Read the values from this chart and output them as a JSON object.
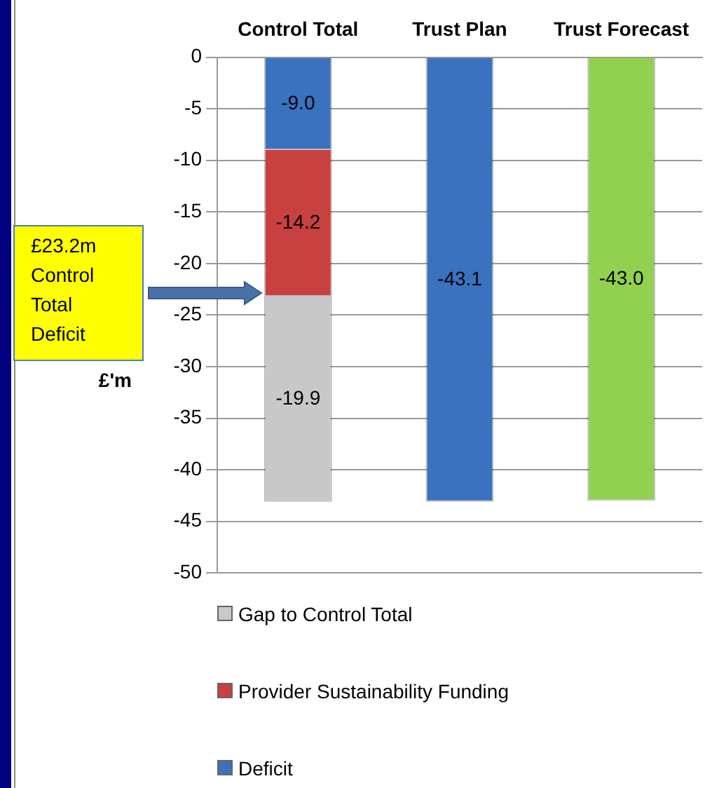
{
  "chart_data": {
    "type": "bar",
    "stacked": true,
    "categories": [
      "Control Total",
      "Trust Plan",
      "Trust Forecast"
    ],
    "ylabel": "£'m",
    "ylim": [
      -50,
      0
    ],
    "yticks": [
      -50,
      -45,
      -40,
      -35,
      -30,
      -25,
      -20,
      -15,
      -10,
      -5,
      0
    ],
    "grid": "y",
    "legend": "bottom",
    "series": [
      {
        "name": "Deficit",
        "color": "#3a72c0",
        "colors": [
          "#3a72c0",
          "#3a72c0",
          "#92d050"
        ],
        "values": [
          -9.0,
          -43.1,
          -43.0
        ],
        "value_labels": [
          "-9.0",
          "-43.1",
          "-43.0"
        ]
      },
      {
        "name": "Provider Sustainability Funding",
        "color": "#c94040",
        "values": [
          -14.2,
          null,
          null
        ],
        "value_labels": [
          "-14.2",
          null,
          null
        ]
      },
      {
        "name": "Gap to Control Total",
        "color": "#c8c8c8",
        "values": [
          -19.9,
          null,
          null
        ],
        "value_labels": [
          "-19.9",
          null,
          null
        ]
      }
    ],
    "annotations": [
      "£23.2m Control Total Deficit"
    ]
  }
}
